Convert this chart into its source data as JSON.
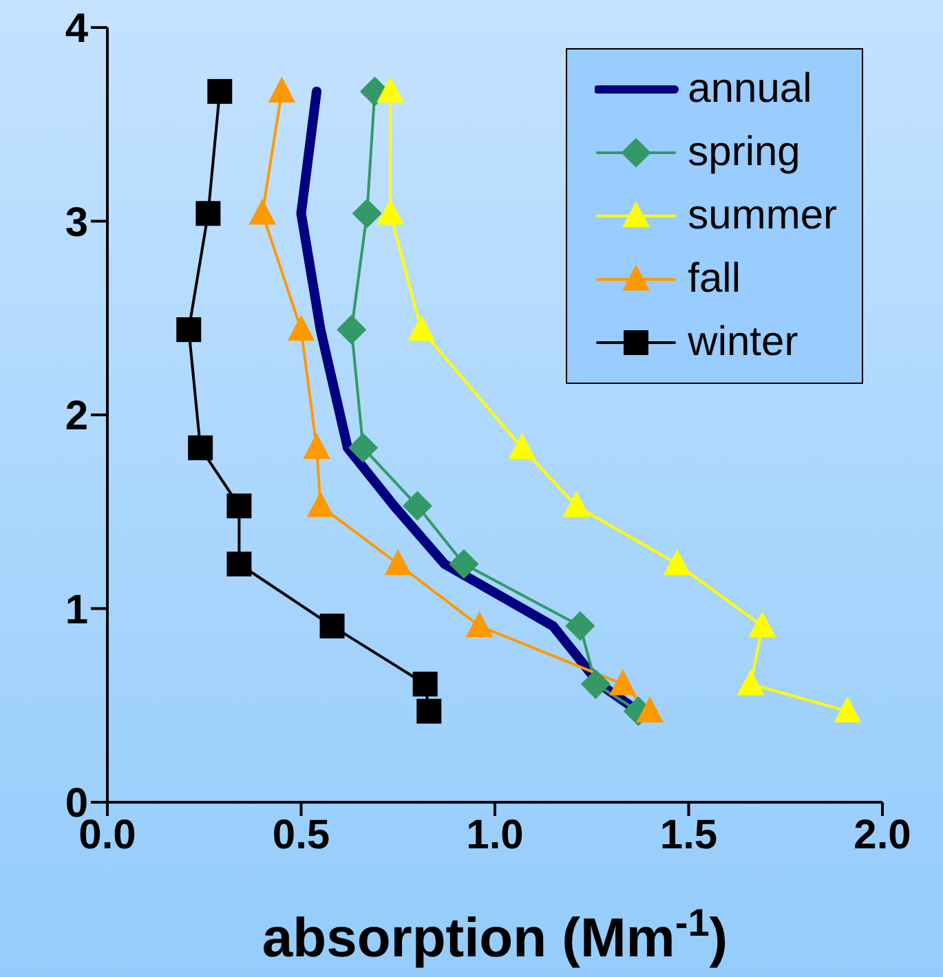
{
  "chart_data": {
    "type": "line",
    "xlabel": "absorption (Mm$^{-1}$)",
    "xlim": [
      0,
      2
    ],
    "xticks": [
      {
        "value": 0,
        "label": "0.0"
      },
      {
        "value": 0.5,
        "label": "0.5"
      },
      {
        "value": 1,
        "label": "1.0"
      },
      {
        "value": 1.5,
        "label": "1.5"
      },
      {
        "value": 2,
        "label": "2.0"
      }
    ],
    "ylim": [
      0,
      4
    ],
    "yticks": [
      0,
      1,
      2,
      3,
      4
    ],
    "grid": false,
    "legend": "top right",
    "series": [
      {
        "name": "annual",
        "color": "#000080",
        "marker": "none",
        "x": [
          0.54,
          0.5,
          0.55,
          0.62,
          0.74,
          0.87,
          1.15,
          1.27,
          1.37
        ],
        "values": [
          3.67,
          3.04,
          2.44,
          1.83,
          1.53,
          1.23,
          0.91,
          0.61,
          0.47
        ]
      },
      {
        "name": "spring",
        "color": "#339966",
        "marker": "diamond",
        "x": [
          0.69,
          0.67,
          0.63,
          0.66,
          0.8,
          0.92,
          1.22,
          1.26,
          1.37
        ],
        "values": [
          3.67,
          3.04,
          2.44,
          1.83,
          1.53,
          1.23,
          0.91,
          0.61,
          0.47
        ]
      },
      {
        "name": "summer",
        "color": "#ffff00",
        "marker": "triangle",
        "x": [
          0.73,
          0.73,
          0.81,
          1.07,
          1.21,
          1.47,
          1.69,
          1.66,
          1.91
        ],
        "values": [
          3.67,
          3.04,
          2.44,
          1.83,
          1.53,
          1.23,
          0.91,
          0.61,
          0.47
        ]
      },
      {
        "name": "fall",
        "color": "#ff9900",
        "marker": "triangle",
        "x": [
          0.45,
          0.4,
          0.5,
          0.54,
          0.55,
          0.75,
          0.96,
          1.33,
          1.4
        ],
        "values": [
          3.67,
          3.04,
          2.44,
          1.83,
          1.53,
          1.23,
          0.91,
          0.61,
          0.47
        ]
      },
      {
        "name": "winter",
        "color": "#000000",
        "marker": "square",
        "x": [
          0.29,
          0.26,
          0.21,
          0.24,
          0.34,
          0.34,
          0.58,
          0.82,
          0.83
        ],
        "values": [
          3.67,
          3.04,
          2.44,
          1.83,
          1.53,
          1.23,
          0.91,
          0.61,
          0.47
        ]
      }
    ]
  }
}
